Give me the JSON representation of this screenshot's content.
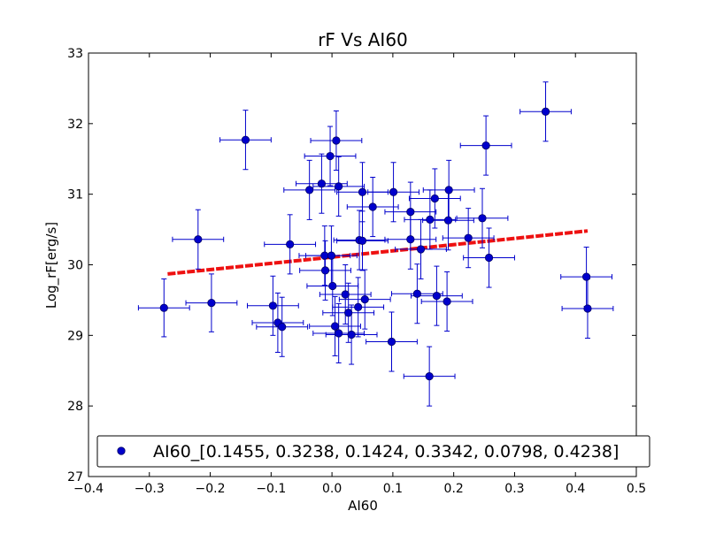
{
  "chart_data": {
    "type": "scatter",
    "title": "rF Vs AI60",
    "xlabel": "AI60",
    "ylabel": "Log_rF[erg/s]",
    "xlim": [
      -0.4,
      0.5
    ],
    "ylim": [
      27,
      33
    ],
    "xticks": [
      -0.4,
      -0.3,
      -0.2,
      -0.1,
      0.0,
      0.1,
      0.2,
      0.3,
      0.4,
      0.5
    ],
    "xtick_labels": [
      "−0.4",
      "−0.3",
      "−0.2",
      "−0.1",
      "0.0",
      "0.1",
      "0.2",
      "0.3",
      "0.4",
      "0.5"
    ],
    "yticks": [
      27,
      28,
      29,
      30,
      31,
      32,
      33
    ],
    "ytick_labels": [
      "27",
      "28",
      "29",
      "30",
      "31",
      "32",
      "33"
    ],
    "grid": false,
    "legend": {
      "placement": "bottom",
      "entries": [
        "AI60_[0.1455, 0.3238, 0.1424, 0.3342, 0.0798, 0.4238]"
      ]
    },
    "colors": {
      "points": "#0000cc",
      "point_edge": "#000066",
      "errorbars": "#0000cc",
      "fit_line": "#ee1111"
    },
    "series": [
      {
        "name": "AI60_[0.1455, 0.3238, 0.1424, 0.3342, 0.0798, 0.4238]",
        "points": [
          {
            "x": -0.276,
            "y": 29.39,
            "xerr": 0.042,
            "yerr": 0.41
          },
          {
            "x": -0.22,
            "y": 30.36,
            "xerr": 0.042,
            "yerr": 0.42
          },
          {
            "x": -0.198,
            "y": 29.46,
            "xerr": 0.042,
            "yerr": 0.41
          },
          {
            "x": -0.142,
            "y": 31.77,
            "xerr": 0.042,
            "yerr": 0.42
          },
          {
            "x": -0.069,
            "y": 30.29,
            "xerr": 0.042,
            "yerr": 0.42
          },
          {
            "x": -0.097,
            "y": 29.42,
            "xerr": 0.042,
            "yerr": 0.42
          },
          {
            "x": -0.089,
            "y": 29.18,
            "xerr": 0.042,
            "yerr": 0.42
          },
          {
            "x": -0.082,
            "y": 29.12,
            "xerr": 0.042,
            "yerr": 0.42
          },
          {
            "x": -0.037,
            "y": 31.06,
            "xerr": 0.042,
            "yerr": 0.42
          },
          {
            "x": -0.017,
            "y": 31.15,
            "xerr": 0.042,
            "yerr": 0.42
          },
          {
            "x": -0.003,
            "y": 31.54,
            "xerr": 0.042,
            "yerr": 0.42
          },
          {
            "x": 0.007,
            "y": 31.76,
            "xerr": 0.042,
            "yerr": 0.42
          },
          {
            "x": 0.011,
            "y": 31.11,
            "xerr": 0.042,
            "yerr": 0.42
          },
          {
            "x": -0.012,
            "y": 30.13,
            "xerr": 0.042,
            "yerr": 0.42
          },
          {
            "x": -0.001,
            "y": 30.13,
            "xerr": 0.042,
            "yerr": 0.42
          },
          {
            "x": -0.011,
            "y": 29.92,
            "xerr": 0.042,
            "yerr": 0.42
          },
          {
            "x": 0.001,
            "y": 29.7,
            "xerr": 0.042,
            "yerr": 0.42
          },
          {
            "x": 0.005,
            "y": 29.13,
            "xerr": 0.042,
            "yerr": 0.42
          },
          {
            "x": 0.011,
            "y": 29.03,
            "xerr": 0.042,
            "yerr": 0.42
          },
          {
            "x": 0.022,
            "y": 29.58,
            "xerr": 0.042,
            "yerr": 0.42
          },
          {
            "x": 0.027,
            "y": 29.32,
            "xerr": 0.042,
            "yerr": 0.42
          },
          {
            "x": 0.032,
            "y": 29.01,
            "xerr": 0.042,
            "yerr": 0.42
          },
          {
            "x": 0.043,
            "y": 29.4,
            "xerr": 0.042,
            "yerr": 0.42
          },
          {
            "x": 0.054,
            "y": 29.51,
            "xerr": 0.042,
            "yerr": 0.42
          },
          {
            "x": 0.045,
            "y": 30.35,
            "xerr": 0.042,
            "yerr": 0.42
          },
          {
            "x": 0.05,
            "y": 30.34,
            "xerr": 0.042,
            "yerr": 0.42
          },
          {
            "x": 0.05,
            "y": 31.03,
            "xerr": 0.042,
            "yerr": 0.42
          },
          {
            "x": 0.067,
            "y": 30.82,
            "xerr": 0.042,
            "yerr": 0.42
          },
          {
            "x": 0.101,
            "y": 31.03,
            "xerr": 0.042,
            "yerr": 0.42
          },
          {
            "x": 0.098,
            "y": 28.91,
            "xerr": 0.042,
            "yerr": 0.42
          },
          {
            "x": 0.129,
            "y": 30.75,
            "xerr": 0.042,
            "yerr": 0.42
          },
          {
            "x": 0.129,
            "y": 30.36,
            "xerr": 0.042,
            "yerr": 0.42
          },
          {
            "x": 0.146,
            "y": 30.22,
            "xerr": 0.042,
            "yerr": 0.42
          },
          {
            "x": 0.14,
            "y": 29.59,
            "xerr": 0.042,
            "yerr": 0.42
          },
          {
            "x": 0.16,
            "y": 28.42,
            "xerr": 0.042,
            "yerr": 0.42
          },
          {
            "x": 0.161,
            "y": 30.64,
            "xerr": 0.042,
            "yerr": 0.42
          },
          {
            "x": 0.169,
            "y": 30.94,
            "xerr": 0.042,
            "yerr": 0.42
          },
          {
            "x": 0.172,
            "y": 29.56,
            "xerr": 0.042,
            "yerr": 0.42
          },
          {
            "x": 0.189,
            "y": 29.48,
            "xerr": 0.042,
            "yerr": 0.42
          },
          {
            "x": 0.191,
            "y": 30.63,
            "xerr": 0.042,
            "yerr": 0.42
          },
          {
            "x": 0.192,
            "y": 31.06,
            "xerr": 0.042,
            "yerr": 0.42
          },
          {
            "x": 0.224,
            "y": 30.38,
            "xerr": 0.042,
            "yerr": 0.42
          },
          {
            "x": 0.247,
            "y": 30.66,
            "xerr": 0.042,
            "yerr": 0.42
          },
          {
            "x": 0.253,
            "y": 31.69,
            "xerr": 0.042,
            "yerr": 0.42
          },
          {
            "x": 0.258,
            "y": 30.1,
            "xerr": 0.042,
            "yerr": 0.42
          },
          {
            "x": 0.351,
            "y": 32.17,
            "xerr": 0.042,
            "yerr": 0.42
          },
          {
            "x": 0.418,
            "y": 29.83,
            "xerr": 0.042,
            "yerr": 0.42
          },
          {
            "x": 0.42,
            "y": 29.38,
            "xerr": 0.042,
            "yerr": 0.42
          }
        ]
      }
    ],
    "fit_line": {
      "style": "dashed",
      "x": [
        -0.27,
        0.42
      ],
      "y": [
        29.87,
        30.48
      ]
    }
  }
}
